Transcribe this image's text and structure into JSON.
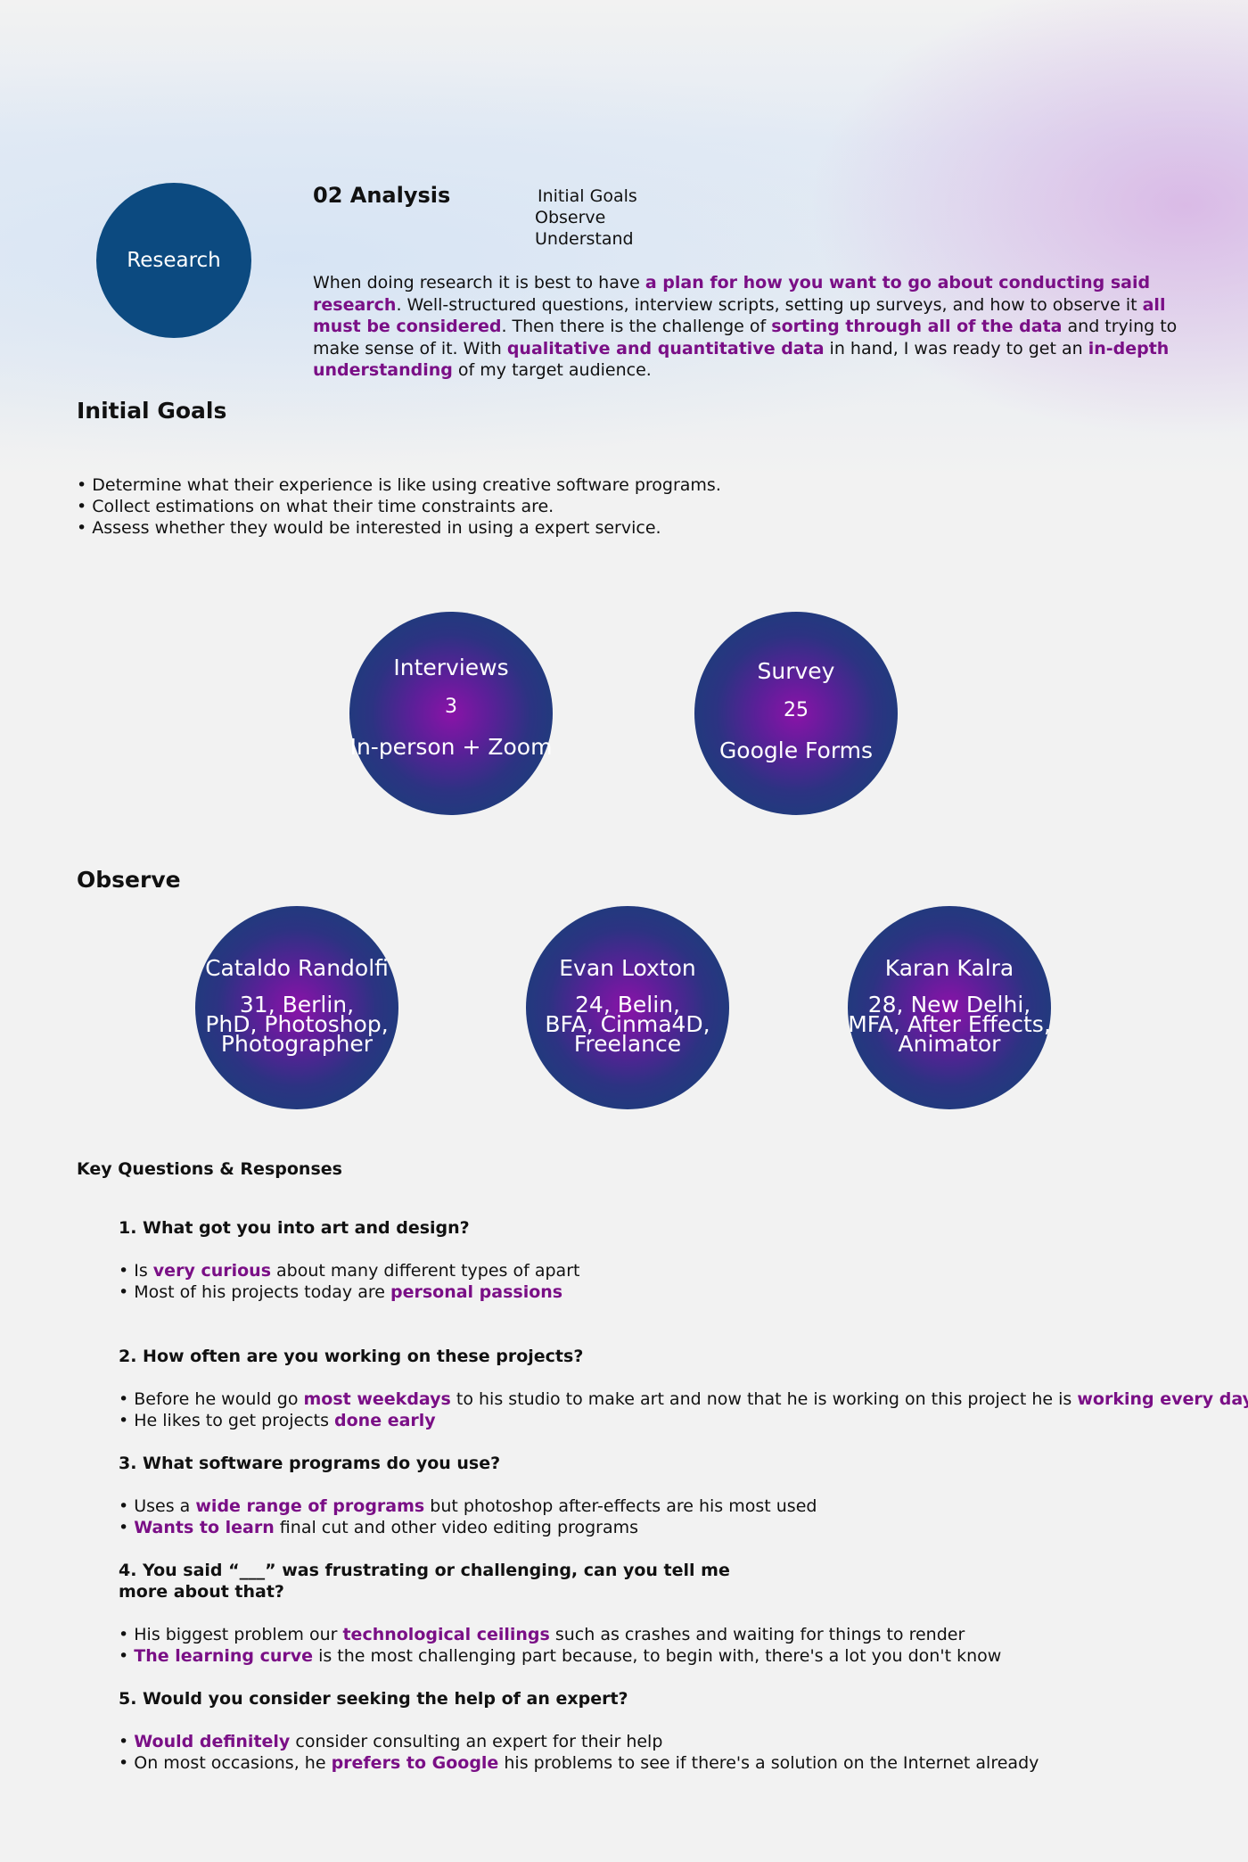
{
  "header": {
    "circle_label": "Research",
    "title": "02 Analysis",
    "toc": [
      "Initial Goals",
      "Observe",
      "Understand"
    ]
  },
  "intro": {
    "p1": "When doing research it is best to have ",
    "h1": "a plan for how you want to go about conducting said research",
    "p2": ". Well-structured questions, interview scripts, setting up surveys, and how to observe it ",
    "h2": "all must be considered",
    "p3": ". Then there is the challenge of ",
    "h3": "sorting through all of the data",
    "p4": " and trying to make sense of it. With ",
    "h4": "qualitative and quantitative data",
    "p5": " in hand, I was ready to get an ",
    "h5": "in-depth understanding",
    "p6": " of my target audience."
  },
  "initial_goals": {
    "title": "Initial Goals",
    "items": [
      "• Determine what their experience is like using creative software programs.",
      "• Collect estimations on what their time constraints are.",
      "• Assess whether they would be interested in using a expert service."
    ]
  },
  "stats": [
    {
      "label": "Interviews",
      "count": "3",
      "method": "In-person + Zoom"
    },
    {
      "label": "Survey",
      "count": "25",
      "method": "Google Forms"
    }
  ],
  "observe": {
    "title": "Observe",
    "personas": [
      {
        "name": "Cataldo Randolfi",
        "lines": [
          "31, Berlin,",
          "PhD, Photoshop,",
          "Photographer"
        ]
      },
      {
        "name": "Evan Loxton",
        "lines": [
          "24, Belin,",
          "BFA, Cinma4D,",
          "Freelance"
        ]
      },
      {
        "name": "Karan Kalra",
        "lines": [
          "28, New Delhi,",
          "MFA, After Effects,",
          "Animator"
        ]
      }
    ]
  },
  "key_questions": {
    "title": "Key Questions & Responses",
    "q1": {
      "question": "1. What got you into art and design?",
      "a1": {
        "pre": "• Is ",
        "hl": "very curious",
        "post": " about many different types of apart"
      },
      "a2": {
        "pre": "• Most of his projects today are ",
        "hl": "personal passions",
        "post": ""
      }
    },
    "q2": {
      "question": "2. How often are you working on these projects?",
      "a1": {
        "pre": "• Before he would go ",
        "hl": "most weekdays",
        "mid": " to his studio to make art and now that he is working on this project he is ",
        "hl2": "working every day"
      },
      "a2": {
        "pre": "• He likes to get projects ",
        "hl": "done early",
        "post": ""
      }
    },
    "q3": {
      "question": "3. What software programs do you use?",
      "a1": {
        "pre": "• Uses a ",
        "hl": "wide range of programs",
        "post": " but photoshop after-effects are his most used"
      },
      "a2": {
        "pre": "• ",
        "hl": "Wants to learn",
        "post": " final cut and other video editing programs"
      }
    },
    "q4": {
      "question_l1": "4. You said “___” was frustrating or challenging, can you tell me",
      "question_l2": "more about that?",
      "a1": {
        "pre": "• His biggest problem our ",
        "hl": "technological ceilings",
        "post": " such as crashes and waiting for things to render"
      },
      "a2": {
        "pre": "• ",
        "hl": "The learning curve",
        "post": " is the most challenging part because, to begin with, there's a lot you don't know"
      }
    },
    "q5": {
      "question": "5. Would you consider seeking the help of an expert?",
      "a1": {
        "pre": "• ",
        "hl": "Would definitely",
        "post": " consider consulting an expert for their help"
      },
      "a2": {
        "pre": "• On most occasions, he ",
        "hl": "prefers to Google",
        "post": " his problems to see if there's a solution on the Internet already"
      }
    }
  }
}
